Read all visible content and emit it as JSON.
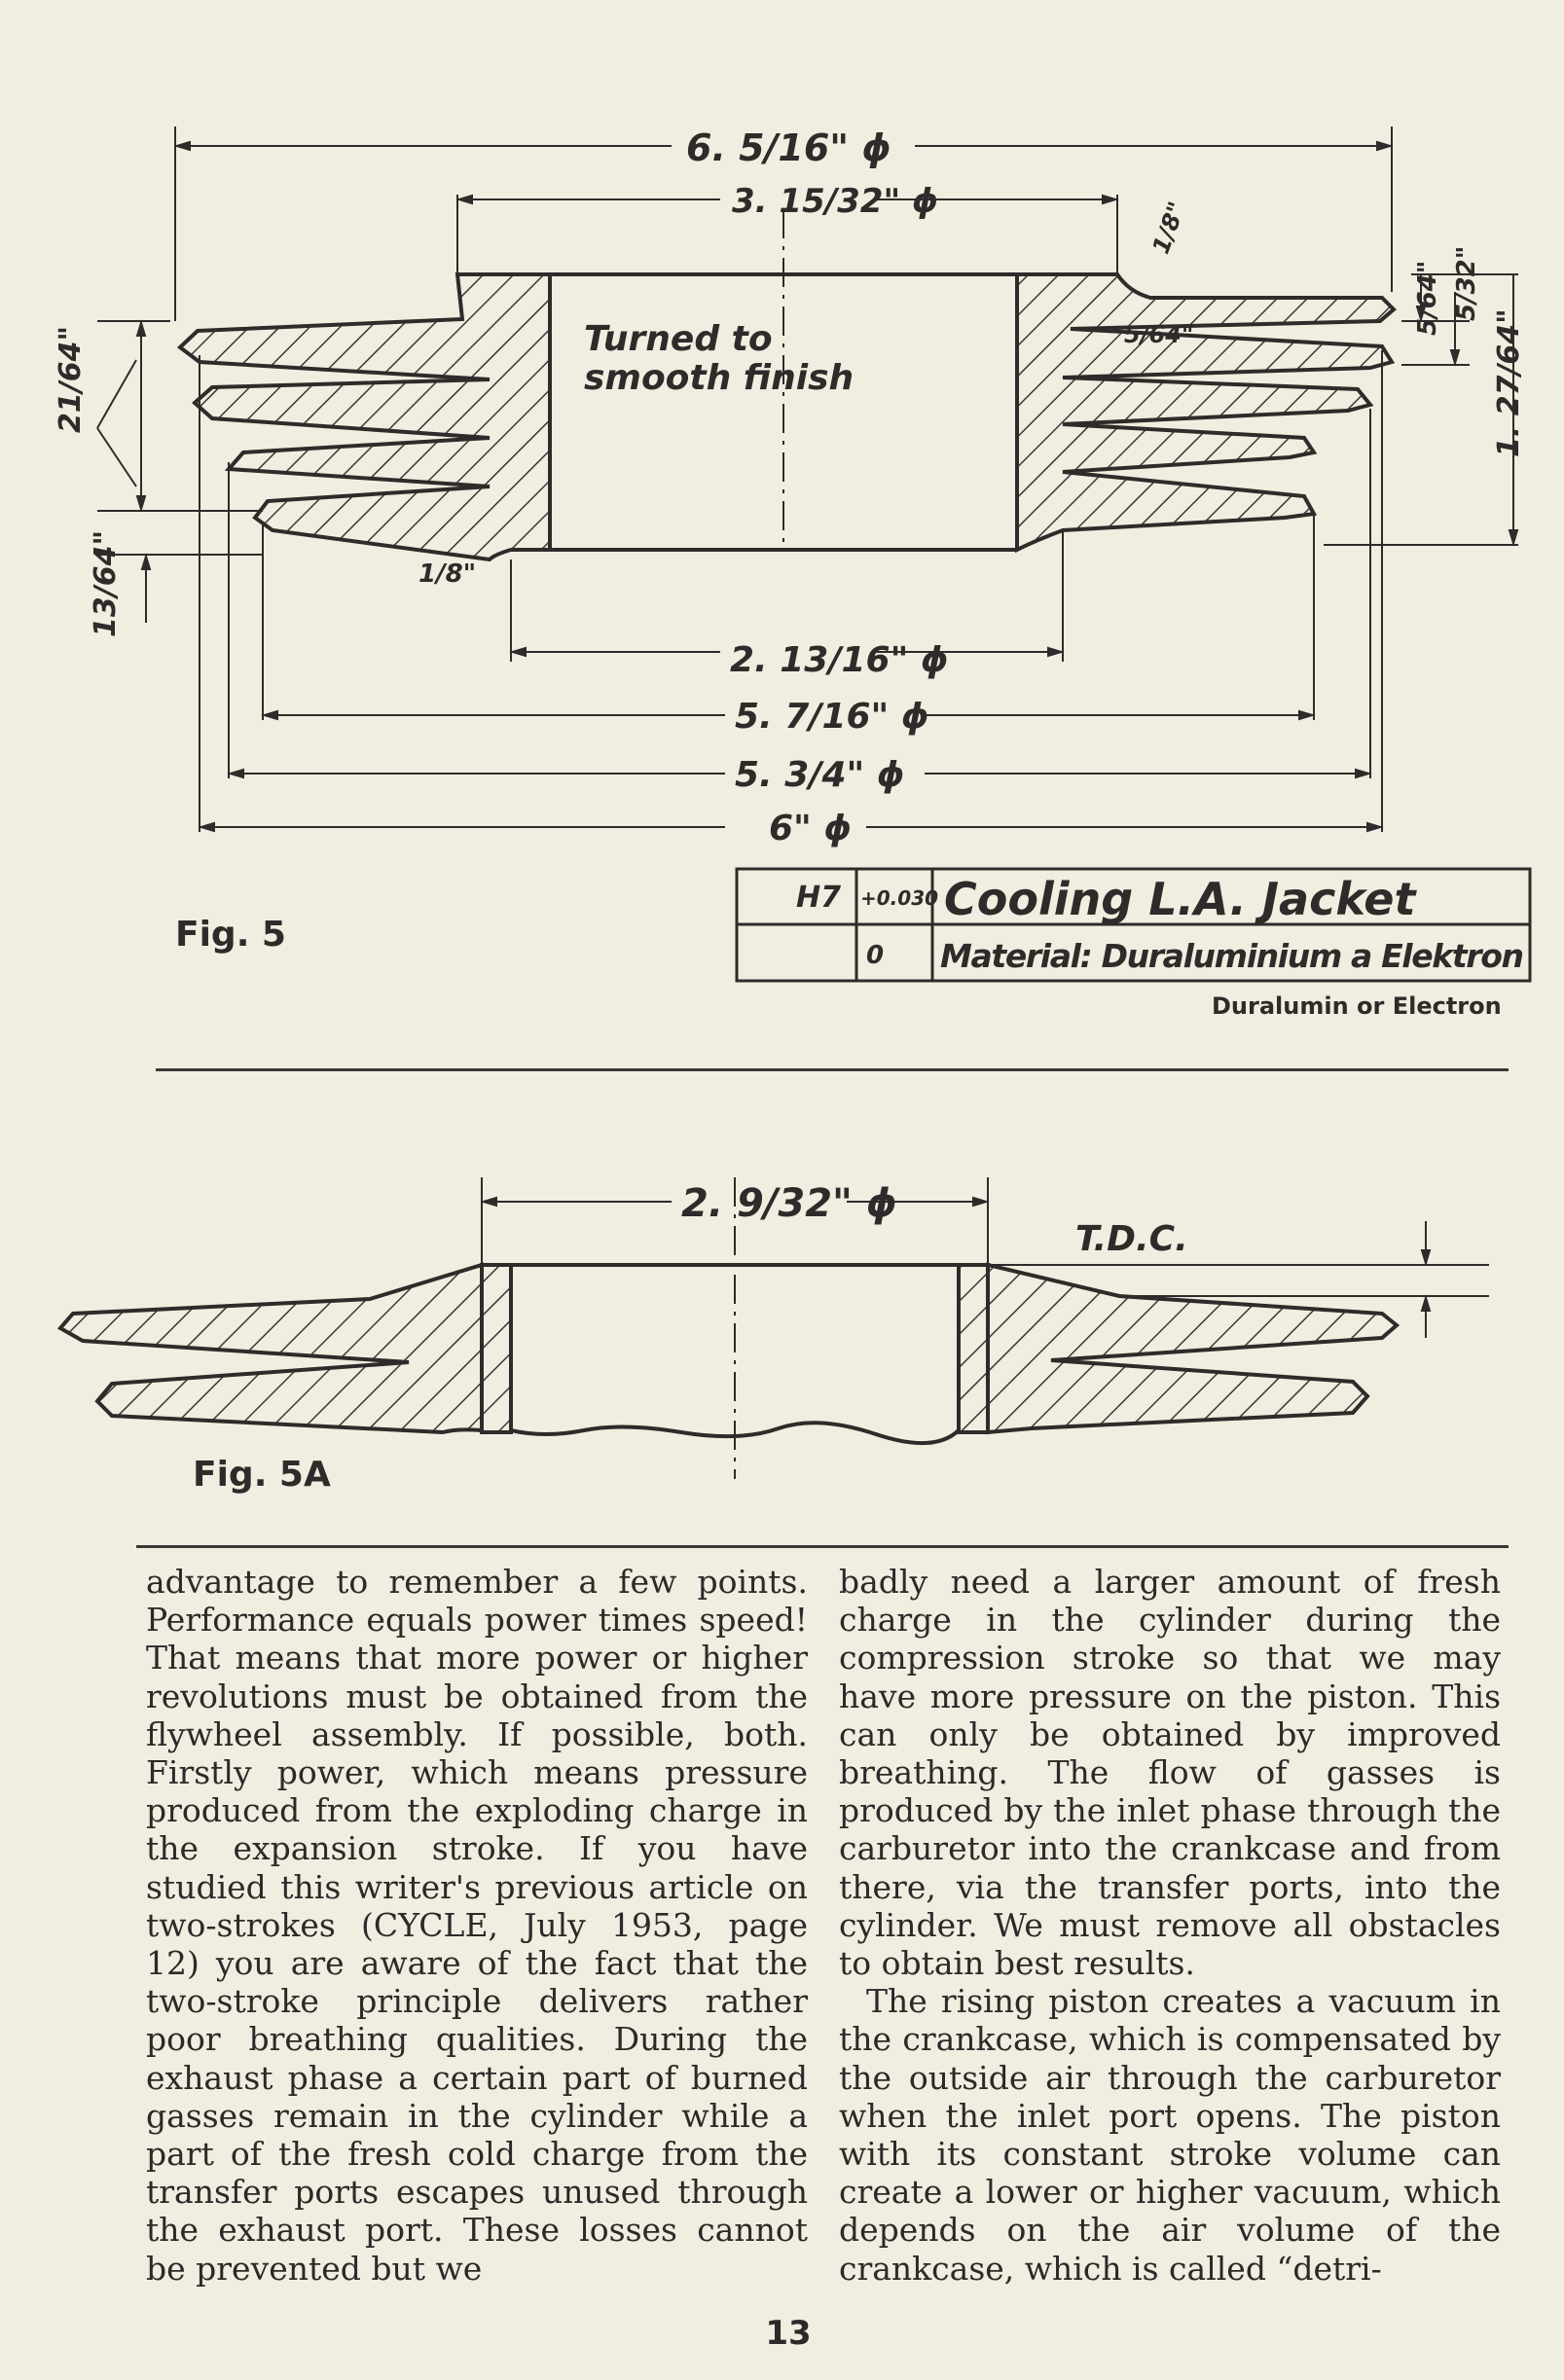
{
  "fig5": {
    "label": "Fig. 5",
    "dims": {
      "d1": "6. 5/16\" ϕ",
      "d2": "3. 15/32\" ϕ",
      "d3": "2. 13/16\" ϕ",
      "d4": "5. 7/16\" ϕ",
      "d5": "5. 3/4\" ϕ",
      "d6": "6\" ϕ",
      "fin_gap": "5/64\"",
      "top_chamfer": "1/8\"",
      "bottom_chamfer": "1/8\"",
      "right_a": "5/64\"",
      "right_b": "5/32\"",
      "right_height": "1. 27/64\"",
      "left_a": "21/64\"",
      "left_b": "13/64\""
    },
    "note": "Turned to smooth finish",
    "table": {
      "fit": "H7",
      "tol_upper": "+0.030",
      "tol_lower": "0",
      "title": "Cooling  L.A.  Jacket",
      "material": "Material: Duraluminium a Elektron"
    },
    "caption": "Duralumin or Electron"
  },
  "fig5a": {
    "label": "Fig. 5A",
    "dim": "2. 9/32\" ϕ",
    "tdc": "T.D.C."
  },
  "body": {
    "left": "advantage to remember a few points. Performance equals power times speed! That means that more power or higher revolutions must be obtained from the flywheel assembly. If possible, both. Firstly power, which means pressure produced from the exploding charge in the expansion stroke. If you have studied this writer's previous article on two-strokes (CYCLE, July 1953, page 12) you are aware of the fact that the two-stroke principle delivers rather poor breathing qualities. During the exhaust phase a certain part of burned gasses remain in the cylinder while a part of the fresh cold charge from the transfer ports escapes unused through the exhaust port. These losses cannot be prevented but we",
    "right_p1": "badly need a larger amount of fresh charge in the cylinder during the compression stroke so that we may have more pressure on the piston. This can only be obtained by improved breathing. The flow of gasses is produced by the inlet phase through the carburetor into the crankcase and from there, via the transfer ports, into the cylinder. We must remove all obstacles to obtain best results.",
    "right_p2": "The rising piston creates a vacuum in the crankcase, which is compensated by the outside air through the carburetor when the inlet port opens. The piston with its constant stroke volume can create a lower or higher vacuum, which depends on the air volume of the crankcase, which is called “detri-"
  },
  "page_number": "13"
}
